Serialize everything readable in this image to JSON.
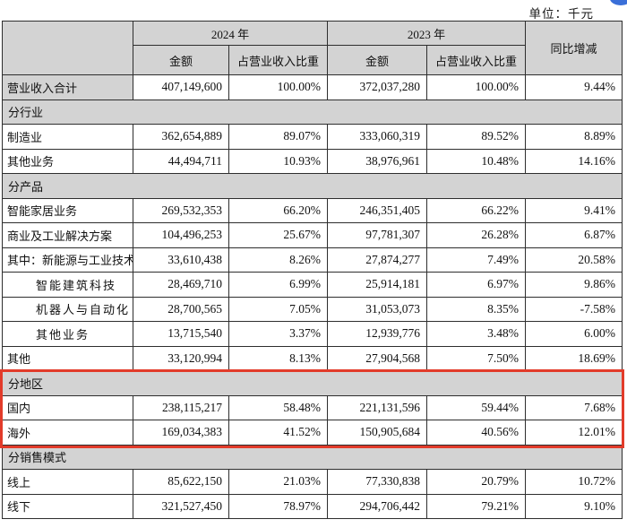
{
  "page": {
    "unit_label": "单位：千元"
  },
  "colors": {
    "header_bg": "#d3d3d3",
    "table_border": "#2e2e2e",
    "highlight_red": "#e23b2a",
    "corner_blue": "#3a6fd8"
  },
  "table": {
    "header": {
      "year_2024": "2024 年",
      "year_2023": "2023 年",
      "yoy": "同比增减",
      "amount": "金额",
      "ratio": "占营业收入比重"
    },
    "rows": [
      {
        "type": "data",
        "label": "营业收入合计",
        "label_gray": true,
        "indent": false,
        "amount_2024": "407,149,600",
        "ratio_2024": "100.00%",
        "amount_2023": "372,037,280",
        "ratio_2023": "100.00%",
        "yoy": "9.44%"
      },
      {
        "type": "section",
        "label": "分行业"
      },
      {
        "type": "data",
        "label": "制造业",
        "label_gray": false,
        "indent": false,
        "amount_2024": "362,654,889",
        "ratio_2024": "89.07%",
        "amount_2023": "333,060,319",
        "ratio_2023": "89.52%",
        "yoy": "8.89%"
      },
      {
        "type": "data",
        "label": "其他业务",
        "label_gray": false,
        "indent": false,
        "amount_2024": "44,494,711",
        "ratio_2024": "10.93%",
        "amount_2023": "38,976,961",
        "ratio_2023": "10.48%",
        "yoy": "14.16%"
      },
      {
        "type": "section",
        "label": "分产品"
      },
      {
        "type": "data",
        "label": "智能家居业务",
        "label_gray": false,
        "indent": false,
        "amount_2024": "269,532,353",
        "ratio_2024": "66.20%",
        "amount_2023": "246,351,405",
        "ratio_2023": "66.22%",
        "yoy": "9.41%"
      },
      {
        "type": "data",
        "label": "商业及工业解决方案",
        "label_gray": false,
        "indent": false,
        "amount_2024": "104,496,253",
        "ratio_2024": "25.67%",
        "amount_2023": "97,781,307",
        "ratio_2023": "26.28%",
        "yoy": "6.87%"
      },
      {
        "type": "data",
        "label": "其中：新能源与工业技术",
        "label_gray": false,
        "indent": false,
        "amount_2024": "33,610,438",
        "ratio_2024": "8.26%",
        "amount_2023": "27,874,277",
        "ratio_2023": "7.49%",
        "yoy": "20.58%"
      },
      {
        "type": "data",
        "label": "智能建筑科技",
        "label_gray": false,
        "indent": true,
        "amount_2024": "28,469,710",
        "ratio_2024": "6.99%",
        "amount_2023": "25,914,181",
        "ratio_2023": "6.97%",
        "yoy": "9.86%"
      },
      {
        "type": "data",
        "label": "机器人与自动化",
        "label_gray": false,
        "indent": true,
        "amount_2024": "28,700,565",
        "ratio_2024": "7.05%",
        "amount_2023": "31,053,073",
        "ratio_2023": "8.35%",
        "yoy": "-7.58%"
      },
      {
        "type": "data",
        "label": "其他业务",
        "label_gray": false,
        "indent": true,
        "amount_2024": "13,715,540",
        "ratio_2024": "3.37%",
        "amount_2023": "12,939,776",
        "ratio_2023": "3.48%",
        "yoy": "6.00%"
      },
      {
        "type": "data",
        "label": "其他",
        "label_gray": false,
        "indent": false,
        "amount_2024": "33,120,994",
        "ratio_2024": "8.13%",
        "amount_2023": "27,904,568",
        "ratio_2023": "7.50%",
        "yoy": "18.69%"
      },
      {
        "type": "section",
        "label": "分地区"
      },
      {
        "type": "data",
        "label": "国内",
        "label_gray": false,
        "indent": false,
        "amount_2024": "238,115,217",
        "ratio_2024": "58.48%",
        "amount_2023": "221,131,596",
        "ratio_2023": "59.44%",
        "yoy": "7.68%"
      },
      {
        "type": "data",
        "label": "海外",
        "label_gray": false,
        "indent": false,
        "amount_2024": "169,034,383",
        "ratio_2024": "41.52%",
        "amount_2023": "150,905,684",
        "ratio_2023": "40.56%",
        "yoy": "12.01%"
      },
      {
        "type": "section",
        "label": "分销售模式"
      },
      {
        "type": "data",
        "label": "线上",
        "label_gray": false,
        "indent": false,
        "amount_2024": "85,622,150",
        "ratio_2024": "21.03%",
        "amount_2023": "77,330,838",
        "ratio_2023": "20.79%",
        "yoy": "10.72%"
      },
      {
        "type": "data",
        "label": "线下",
        "label_gray": false,
        "indent": false,
        "amount_2024": "321,527,450",
        "ratio_2024": "78.97%",
        "amount_2023": "294,706,442",
        "ratio_2023": "79.21%",
        "yoy": "9.10%"
      }
    ]
  }
}
